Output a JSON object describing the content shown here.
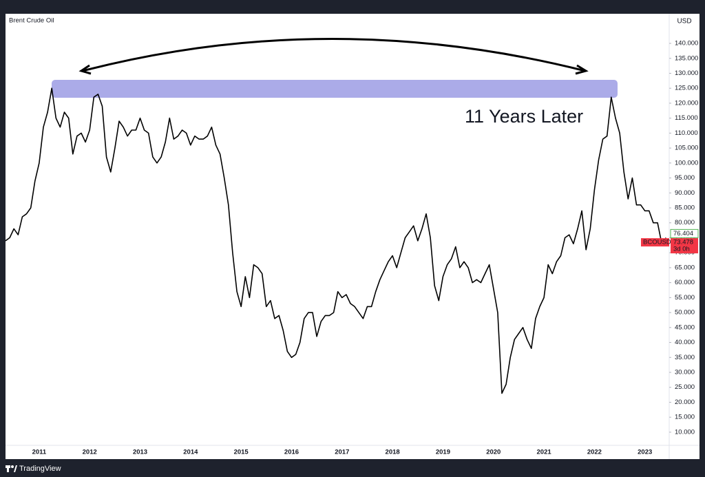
{
  "chart_data": {
    "type": "line",
    "title": "Brent Crude Oil",
    "currency": "USD",
    "annotation": "11 Years Later",
    "source": "TradingView",
    "color": "#000000",
    "categories": [
      null,
      null,
      null,
      null,
      null,
      null,
      null,
      null,
      "2011",
      null,
      null,
      null,
      null,
      null,
      null,
      null,
      null,
      null,
      null,
      null,
      "2012",
      null,
      null,
      null,
      null,
      null,
      null,
      null,
      null,
      null,
      null,
      null,
      "2013",
      null,
      null,
      null,
      null,
      null,
      null,
      null,
      null,
      null,
      null,
      null,
      "2014",
      null,
      null,
      null,
      null,
      null,
      null,
      null,
      null,
      null,
      null,
      null,
      "2015",
      null,
      null,
      null,
      null,
      null,
      null,
      null,
      null,
      null,
      null,
      null,
      "2016",
      null,
      null,
      null,
      null,
      null,
      null,
      null,
      null,
      null,
      null,
      null,
      "2017",
      null,
      null,
      null,
      null,
      null,
      null,
      null,
      null,
      null,
      null,
      null,
      "2018",
      null,
      null,
      null,
      null,
      null,
      null,
      null,
      null,
      null,
      null,
      null,
      "2019",
      null,
      null,
      null,
      null,
      null,
      null,
      null,
      null,
      null,
      null,
      null,
      "2020",
      null,
      null,
      null,
      null,
      null,
      null,
      null,
      null,
      null,
      null,
      null,
      "2021",
      null,
      null,
      null,
      null,
      null,
      null,
      null,
      null,
      null,
      null,
      null,
      "2022",
      null,
      null,
      null,
      null,
      null,
      null,
      null,
      null,
      null,
      null,
      null,
      "2023",
      null,
      null,
      null,
      null,
      null
    ],
    "values": [
      74,
      75,
      78,
      76,
      82,
      83,
      85,
      94,
      100,
      112,
      117,
      125,
      115,
      112,
      117,
      115,
      103,
      109,
      110,
      107,
      111,
      122,
      123,
      119,
      102,
      97,
      105,
      114,
      112,
      109,
      111,
      111,
      115,
      111,
      110,
      102,
      100,
      102,
      107,
      115,
      108,
      109,
      111,
      110,
      106,
      109,
      108,
      108,
      109,
      112,
      106,
      103,
      95,
      86,
      70,
      57,
      52,
      62,
      55,
      66,
      65,
      63,
      52,
      54,
      48,
      49,
      44,
      37,
      35,
      36,
      40,
      48,
      50,
      50,
      42,
      47,
      49,
      49,
      50,
      57,
      55,
      56,
      53,
      52,
      50,
      48,
      52,
      52,
      57,
      61,
      64,
      67,
      69,
      65,
      70,
      75,
      77,
      79,
      74,
      78,
      83,
      75,
      59,
      54,
      62,
      66,
      68,
      72,
      65,
      67,
      65,
      60,
      61,
      60,
      63,
      66,
      58,
      50,
      23,
      26,
      35,
      41,
      43,
      45,
      41,
      38,
      48,
      52,
      55,
      66,
      63,
      67,
      69,
      75,
      76,
      73,
      78,
      84,
      71,
      78,
      91,
      101,
      108,
      109,
      122,
      115,
      110,
      97,
      88,
      95,
      86,
      86,
      84,
      84,
      80,
      80,
      73,
      75
    ],
    "ylim": [
      5.6,
      149.9
    ],
    "yticks": [
      {
        "value": 10,
        "label": "10.000"
      },
      {
        "value": 15,
        "label": "15.000"
      },
      {
        "value": 20,
        "label": "20.000"
      },
      {
        "value": 25,
        "label": "25.000"
      },
      {
        "value": 30,
        "label": "30.000"
      },
      {
        "value": 35,
        "label": "35.000"
      },
      {
        "value": 40,
        "label": "40.000"
      },
      {
        "value": 45,
        "label": "45.000"
      },
      {
        "value": 50,
        "label": "50.000"
      },
      {
        "value": 55,
        "label": "55.000"
      },
      {
        "value": 60,
        "label": "60.000"
      },
      {
        "value": 65,
        "label": "65.000"
      },
      {
        "value": 70,
        "label": "70.000"
      },
      {
        "value": 75,
        "label": "75.000"
      },
      {
        "value": 80,
        "label": "80.000"
      },
      {
        "value": 85,
        "label": "85.000"
      },
      {
        "value": 90,
        "label": "90.000"
      },
      {
        "value": 95,
        "label": "95.000"
      },
      {
        "value": 100,
        "label": "100.000"
      },
      {
        "value": 105,
        "label": "105.000"
      },
      {
        "value": 110,
        "label": "110.000"
      },
      {
        "value": 115,
        "label": "115.000"
      },
      {
        "value": 120,
        "label": "120.000"
      },
      {
        "value": 125,
        "label": "125.000"
      },
      {
        "value": 130,
        "label": "130.000"
      },
      {
        "value": 135,
        "label": "135.000"
      },
      {
        "value": 140,
        "label": "140.000"
      }
    ],
    "grid": false,
    "price_markers": [
      {
        "value": 76.404,
        "color": "#4caf50"
      },
      {
        "name": "BCOUSD",
        "value": 73.478,
        "countdown": "3d 0h",
        "color": "#f23645"
      }
    ]
  }
}
